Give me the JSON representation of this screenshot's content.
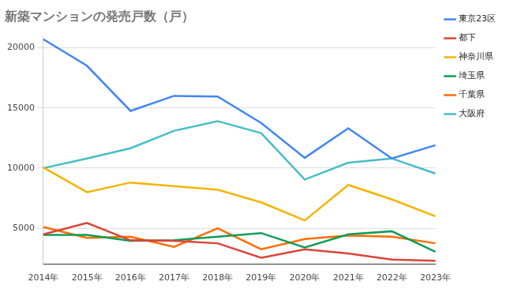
{
  "chart_data": {
    "type": "line",
    "title": "新築マンションの発売戸数（戸）",
    "categories": [
      "2014年",
      "2015年",
      "2016年",
      "2017年",
      "2018年",
      "2019年",
      "2020年",
      "2021年",
      "2022年",
      "2023年"
    ],
    "series": [
      {
        "name": "東京23区",
        "color": "#4285f4",
        "values": [
          20700,
          18500,
          14750,
          16000,
          15950,
          13750,
          10850,
          13300,
          10800,
          11900
        ]
      },
      {
        "name": "都下",
        "color": "#db4437",
        "values": [
          4500,
          5450,
          4000,
          3950,
          3750,
          2550,
          3250,
          2900,
          2400,
          2300
        ]
      },
      {
        "name": "神奈川県",
        "color": "#f4b400",
        "values": [
          10050,
          8000,
          8800,
          8500,
          8200,
          7150,
          5650,
          8600,
          7400,
          6000
        ]
      },
      {
        "name": "埼玉県",
        "color": "#0f9d58",
        "values": [
          4450,
          4450,
          3950,
          4000,
          4300,
          4600,
          3400,
          4500,
          4750,
          3050
        ]
      },
      {
        "name": "千葉県",
        "color": "#ff6d00",
        "values": [
          5100,
          4200,
          4300,
          3450,
          5000,
          3250,
          4100,
          4400,
          4300,
          3750
        ]
      },
      {
        "name": "大阪府",
        "color": "#46bdc6",
        "values": [
          10000,
          10800,
          11650,
          13100,
          13900,
          12900,
          9050,
          10450,
          10800,
          9550
        ]
      }
    ],
    "ylim": [
      2000,
      21000
    ],
    "yticks": [
      5000,
      10000,
      15000,
      20000
    ],
    "grid": true,
    "legend": "right"
  }
}
